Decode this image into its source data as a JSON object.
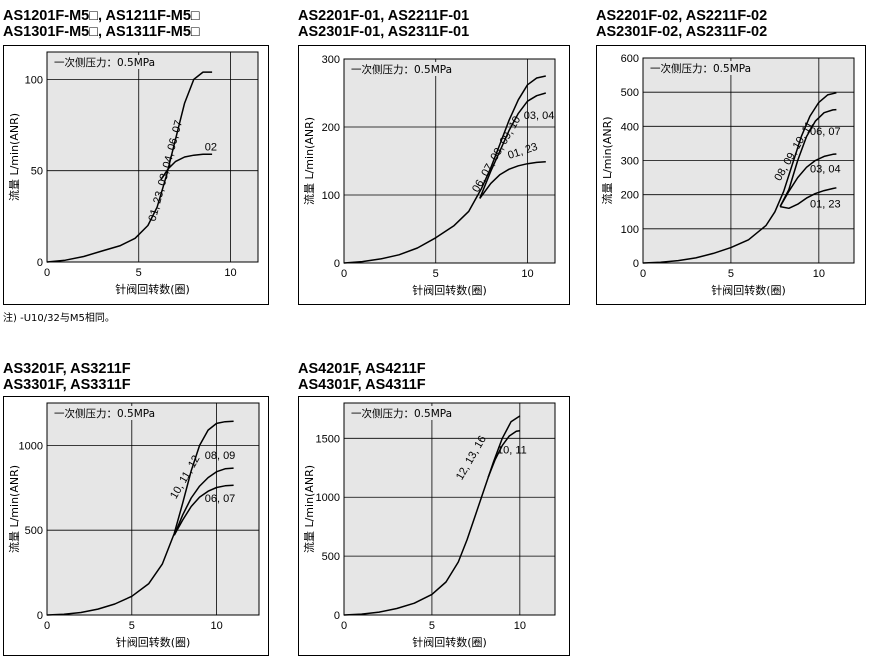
{
  "note": "注) -U10/32与M5相同。",
  "chart_data": [
    {
      "type": "line",
      "title_lines": [
        "AS1201F-M5□, AS1211F-M5□",
        "AS1301F-M5□, AS1311F-M5□"
      ],
      "xlabel": "针阀回转数(圈)",
      "ylabel": "流量 L/min(ANR)",
      "annotation": "一次侧压力：0.5MPa",
      "xlim": [
        0,
        11.5
      ],
      "ylim": [
        0,
        115
      ],
      "xticks": [
        0,
        5,
        10
      ],
      "yticks": [
        0,
        50,
        100
      ],
      "grid": true,
      "series": [
        {
          "name": "01, 23, 03, 04, 06, 07",
          "x": [
            0,
            1,
            2,
            3,
            4,
            4.8,
            5.5,
            6,
            6.5,
            7,
            7.5,
            8,
            8.5,
            9
          ],
          "y": [
            0,
            1,
            3,
            6,
            9,
            13,
            20,
            30,
            47,
            67,
            87,
            100,
            104,
            104
          ]
        },
        {
          "name": "02",
          "x": [
            6.2,
            6.6,
            7,
            7.5,
            8,
            8.5,
            9
          ],
          "y": [
            45,
            51,
            55,
            57.5,
            58.5,
            59,
            59
          ]
        }
      ],
      "labels": [
        {
          "text": "01, 23, 03, 04, 06, 07",
          "x": 5.9,
          "y": 22,
          "rotate": -75
        },
        {
          "text": "02",
          "x": 8.6,
          "y": 61,
          "rotate": 0
        }
      ]
    },
    {
      "type": "line",
      "title_lines": [
        "AS2201F-01, AS2211F-01",
        "AS2301F-01, AS2311F-01"
      ],
      "xlabel": "针阀回转数(圈)",
      "ylabel": "流量 L/min(ANR)",
      "annotation": "一次侧压力：0.5MPa",
      "xlim": [
        0,
        11.5
      ],
      "ylim": [
        0,
        300
      ],
      "xticks": [
        0,
        5,
        10
      ],
      "yticks": [
        0,
        100,
        200,
        300
      ],
      "grid": true,
      "series": [
        {
          "name": "06, 07, 08, 09, 10",
          "x": [
            0,
            1,
            2,
            3,
            4,
            5,
            6,
            6.8,
            7.5,
            8,
            8.5,
            9,
            9.5,
            10,
            10.5,
            11
          ],
          "y": [
            0,
            2,
            6,
            12,
            22,
            37,
            55,
            76,
            110,
            140,
            175,
            210,
            240,
            262,
            272,
            275
          ]
        },
        {
          "name": "03, 04",
          "x": [
            7.4,
            8,
            8.5,
            9,
            9.5,
            10,
            10.5,
            11
          ],
          "y": [
            95,
            135,
            165,
            195,
            220,
            238,
            246,
            250
          ]
        },
        {
          "name": "01, 23",
          "x": [
            7.4,
            8,
            8.5,
            9,
            9.5,
            10,
            10.5,
            11
          ],
          "y": [
            95,
            117,
            130,
            138,
            143,
            146,
            148,
            149
          ]
        }
      ],
      "labels": [
        {
          "text": "06, 07, 08, 09, 10",
          "x": 7.3,
          "y": 103,
          "rotate": -60
        },
        {
          "text": "03, 04",
          "x": 9.8,
          "y": 212,
          "rotate": 0
        },
        {
          "text": "01, 23",
          "x": 9.0,
          "y": 153,
          "rotate": -18
        }
      ]
    },
    {
      "type": "line",
      "title_lines": [
        "AS2201F-02, AS2211F-02",
        "AS2301F-02, AS2311F-02"
      ],
      "xlabel": "针阀回转数(圈)",
      "ylabel": "流量 L/min(ANR)",
      "annotation": "一次侧压力：0.5MPa",
      "xlim": [
        0,
        12
      ],
      "ylim": [
        0,
        600
      ],
      "xticks": [
        0,
        5,
        10
      ],
      "yticks": [
        0,
        100,
        200,
        300,
        400,
        500,
        600
      ],
      "grid": true,
      "series": [
        {
          "name": "08, 09, 10, 11",
          "x": [
            0,
            1,
            2,
            3,
            4,
            5,
            6,
            7,
            7.5,
            8,
            8.5,
            9,
            9.5,
            10,
            10.5,
            11
          ],
          "y": [
            0,
            2,
            7,
            15,
            28,
            45,
            68,
            110,
            150,
            210,
            290,
            370,
            430,
            470,
            492,
            498
          ]
        },
        {
          "name": "06, 07",
          "x": [
            7.8,
            8.3,
            8.8,
            9.3,
            9.8,
            10.3,
            10.8,
            11
          ],
          "y": [
            165,
            215,
            300,
            370,
            415,
            440,
            448,
            449
          ]
        },
        {
          "name": "03, 04",
          "x": [
            7.8,
            8.3,
            8.8,
            9.3,
            9.8,
            10.3,
            10.8,
            11
          ],
          "y": [
            165,
            210,
            250,
            280,
            300,
            312,
            318,
            319
          ]
        },
        {
          "name": "01, 23",
          "x": [
            7.8,
            8.3,
            8.8,
            9.3,
            9.8,
            10.3,
            10.8,
            11
          ],
          "y": [
            165,
            160,
            172,
            190,
            203,
            212,
            218,
            220
          ]
        }
      ],
      "labels": [
        {
          "text": "08, 09, 10, 11",
          "x": 7.8,
          "y": 238,
          "rotate": -60
        },
        {
          "text": "06, 07",
          "x": 9.5,
          "y": 375,
          "rotate": 0
        },
        {
          "text": "03, 04",
          "x": 9.5,
          "y": 265,
          "rotate": 0
        },
        {
          "text": "01, 23",
          "x": 9.5,
          "y": 162,
          "rotate": 0
        }
      ]
    },
    {
      "type": "line",
      "title_lines": [
        "AS3201F, AS3211F",
        "AS3301F, AS3311F"
      ],
      "xlabel": "针阀回转数(圈)",
      "ylabel": "流量 L/min(ANR)",
      "annotation": "一次侧压力：0.5MPa",
      "xlim": [
        0,
        12.5
      ],
      "ylim": [
        0,
        1250
      ],
      "xticks": [
        0,
        5,
        10
      ],
      "yticks": [
        0,
        500,
        1000
      ],
      "grid": true,
      "series": [
        {
          "name": "10, 11, 12",
          "x": [
            0,
            1,
            2,
            3,
            4,
            5,
            6,
            6.8,
            7.5,
            8,
            8.5,
            9,
            9.5,
            10,
            10.5,
            11
          ],
          "y": [
            0,
            5,
            15,
            35,
            65,
            110,
            185,
            300,
            480,
            660,
            850,
            1000,
            1090,
            1130,
            1140,
            1142
          ]
        },
        {
          "name": "08, 09",
          "x": [
            7.5,
            8,
            8.5,
            9,
            9.5,
            10,
            10.5,
            11
          ],
          "y": [
            470,
            590,
            690,
            760,
            810,
            845,
            862,
            866
          ]
        },
        {
          "name": "06, 07",
          "x": [
            7.5,
            8,
            8.5,
            9,
            9.5,
            10,
            10.5,
            11
          ],
          "y": [
            470,
            560,
            640,
            695,
            730,
            752,
            762,
            765
          ]
        }
      ],
      "labels": [
        {
          "text": "10, 11, 12",
          "x": 7.6,
          "y": 680,
          "rotate": -60
        },
        {
          "text": "08, 09",
          "x": 9.3,
          "y": 920,
          "rotate": 0
        },
        {
          "text": "06, 07",
          "x": 9.3,
          "y": 665,
          "rotate": 0
        }
      ]
    },
    {
      "type": "line",
      "title_lines": [
        "AS4201F, AS4211F",
        "AS4301F, AS4311F"
      ],
      "xlabel": "针阀回转数(圈)",
      "ylabel": "流量 L/min(ANR)",
      "annotation": "一次侧压力：0.5MPa",
      "xlim": [
        0,
        12
      ],
      "ylim": [
        0,
        1800
      ],
      "xticks": [
        0,
        5,
        10
      ],
      "yticks": [
        0,
        500,
        1000,
        1500
      ],
      "grid": true,
      "series": [
        {
          "name": "12, 13, 16",
          "x": [
            0,
            1,
            2,
            3,
            4,
            5,
            5.8,
            6.5,
            7,
            7.5,
            8,
            8.5,
            9,
            9.5,
            10
          ],
          "y": [
            0,
            8,
            25,
            55,
            100,
            175,
            280,
            450,
            640,
            860,
            1080,
            1300,
            1500,
            1640,
            1690
          ]
        },
        {
          "name": "10, 11",
          "x": [
            8.2,
            8.6,
            9,
            9.4,
            9.8,
            10
          ],
          "y": [
            1170,
            1320,
            1440,
            1520,
            1560,
            1565
          ]
        }
      ],
      "labels": [
        {
          "text": "12, 13, 16",
          "x": 6.7,
          "y": 1140,
          "rotate": -60
        },
        {
          "text": "10, 11",
          "x": 8.7,
          "y": 1370,
          "rotate": 0
        }
      ]
    }
  ]
}
